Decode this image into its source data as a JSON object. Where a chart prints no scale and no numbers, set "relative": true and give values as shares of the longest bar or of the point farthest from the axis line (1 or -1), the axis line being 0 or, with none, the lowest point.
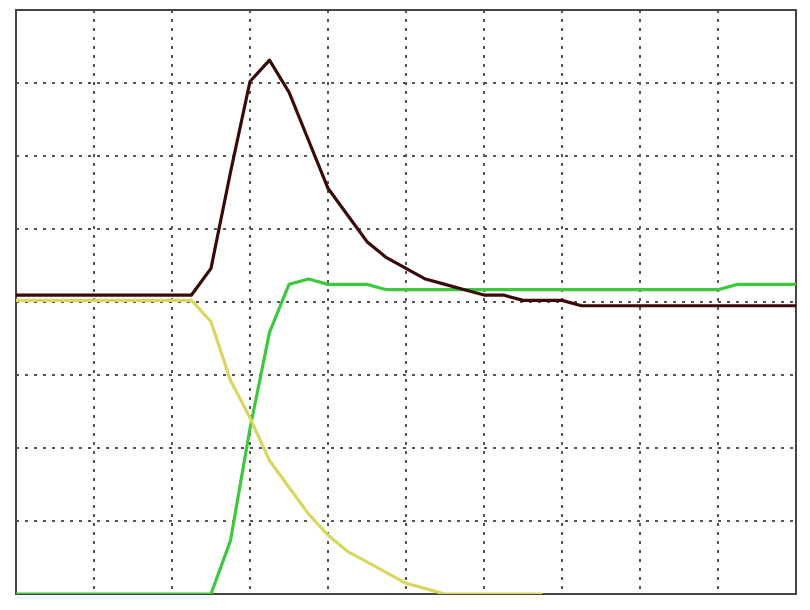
{
  "chart_data": {
    "type": "line",
    "relative": true,
    "grid": true,
    "marker": "none",
    "line_style": "solid",
    "categories": [
      null,
      null,
      null,
      null,
      null,
      null,
      null,
      null,
      null,
      null,
      null,
      null,
      null,
      null,
      null,
      null,
      null,
      null,
      null,
      null,
      null,
      null,
      null,
      null,
      null,
      null,
      null,
      null,
      null,
      null,
      null,
      null,
      null,
      null,
      null,
      null,
      null,
      null,
      null,
      null,
      null
    ],
    "series": [
      {
        "color": "#3a0a0a",
        "values": [
          0.56,
          0.56,
          0.56,
          0.56,
          0.56,
          0.56,
          0.56,
          0.56,
          0.56,
          0.56,
          0.61,
          0.79,
          0.96,
          1,
          0.94,
          0.85,
          0.76,
          0.71,
          0.66,
          0.63,
          0.61,
          0.59,
          0.58,
          0.57,
          0.56,
          0.56,
          0.55,
          0.55,
          0.55,
          0.54,
          0.54,
          0.54,
          0.54,
          0.54,
          0.54,
          0.54,
          0.54,
          0.54,
          0.54,
          0.54,
          0.54
        ]
      },
      {
        "color": "#d8d860",
        "values": [
          0.55,
          0.55,
          0.55,
          0.55,
          0.55,
          0.55,
          0.55,
          0.55,
          0.55,
          0.55,
          0.51,
          0.4,
          0.33,
          0.25,
          0.2,
          0.15,
          0.11,
          0.08,
          0.06,
          0.04,
          0.02,
          0.01,
          0,
          0,
          0,
          0,
          0,
          0,
          null,
          null,
          null,
          null,
          null,
          null,
          null,
          null,
          null,
          null,
          null,
          null,
          null
        ]
      },
      {
        "color": "#3dc83d",
        "values": [
          0,
          0,
          0,
          0,
          0,
          0,
          0,
          0,
          0,
          0,
          0,
          0.1,
          0.31,
          0.49,
          0.58,
          0.59,
          0.58,
          0.58,
          0.58,
          0.57,
          0.57,
          0.57,
          0.57,
          0.57,
          0.57,
          0.57,
          0.57,
          0.57,
          0.57,
          0.57,
          0.57,
          0.57,
          0.57,
          0.57,
          0.57,
          0.57,
          0.57,
          0.58,
          0.58,
          0.58,
          0.58
        ]
      }
    ]
  }
}
